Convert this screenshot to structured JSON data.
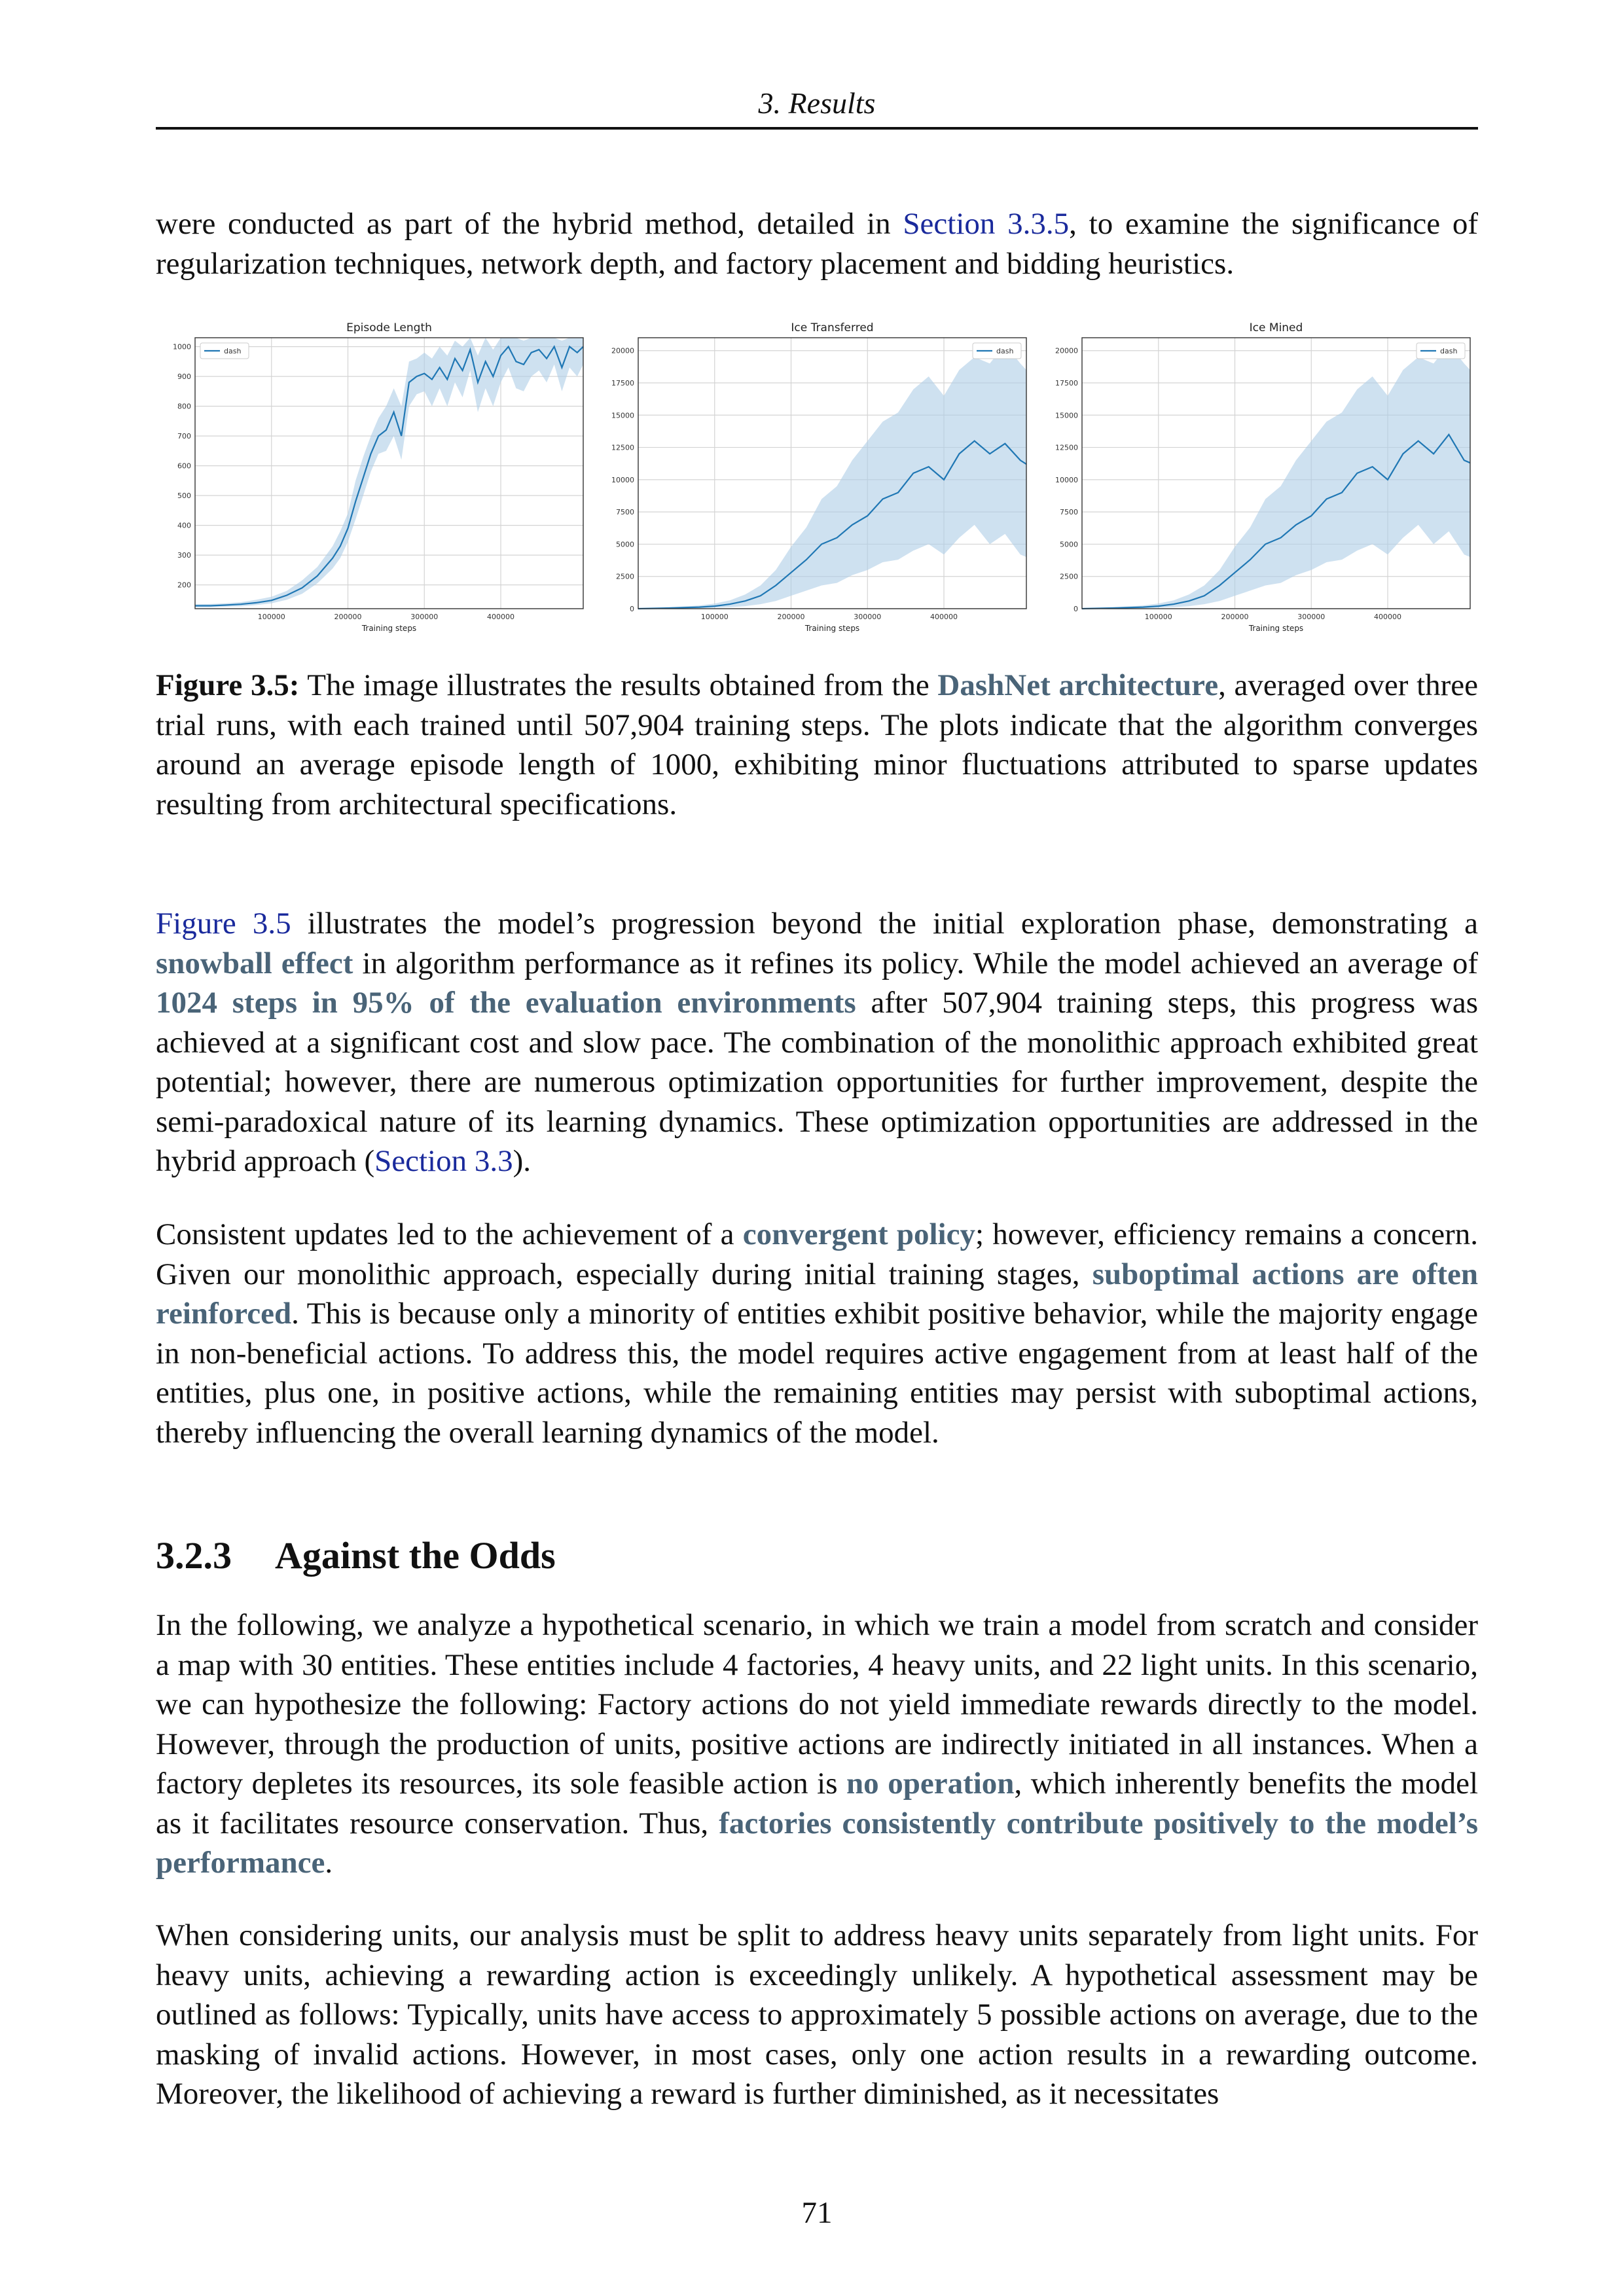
{
  "header": {
    "running_title": "3. Results"
  },
  "intro": {
    "text_before": "were conducted as part of the hybrid method, detailed in ",
    "link": "Section 3.3.5",
    "text_after": ", to examine the significance of regularization techniques, network depth, and factory placement and bidding heuristics."
  },
  "chart_data": [
    {
      "type": "line",
      "title": "Episode Length",
      "xlabel": "Training steps",
      "ylabel": "",
      "xlim": [
        0,
        507904
      ],
      "ylim": [
        120,
        1030
      ],
      "xticks": [
        100000,
        200000,
        300000,
        400000
      ],
      "yticks": [
        200,
        300,
        400,
        500,
        600,
        700,
        800,
        900,
        1000
      ],
      "legend": "top-left",
      "grid": true,
      "series": [
        {
          "name": "dash",
          "color": "#1f77b4",
          "band_color": "#aecde6",
          "x": [
            0,
            20000,
            40000,
            60000,
            80000,
            100000,
            120000,
            140000,
            160000,
            180000,
            190000,
            200000,
            210000,
            220000,
            230000,
            240000,
            250000,
            260000,
            270000,
            280000,
            290000,
            300000,
            310000,
            320000,
            330000,
            340000,
            350000,
            360000,
            370000,
            380000,
            390000,
            400000,
            410000,
            420000,
            430000,
            440000,
            450000,
            460000,
            470000,
            480000,
            490000,
            500000,
            507904
          ],
          "y": [
            130,
            130,
            132,
            135,
            140,
            148,
            165,
            190,
            230,
            290,
            330,
            390,
            480,
            560,
            640,
            700,
            720,
            780,
            700,
            880,
            900,
            910,
            890,
            930,
            890,
            960,
            920,
            990,
            880,
            950,
            900,
            970,
            1000,
            950,
            940,
            980,
            990,
            960,
            1000,
            930,
            1000,
            980,
            1000
          ],
          "y_low": [
            125,
            125,
            127,
            128,
            132,
            138,
            150,
            170,
            205,
            255,
            290,
            345,
            420,
            500,
            580,
            640,
            650,
            700,
            620,
            800,
            840,
            850,
            800,
            860,
            800,
            880,
            830,
            920,
            780,
            860,
            800,
            880,
            930,
            860,
            850,
            900,
            920,
            880,
            940,
            850,
            930,
            900,
            940
          ],
          "y_high": [
            135,
            136,
            138,
            142,
            150,
            160,
            180,
            215,
            260,
            330,
            380,
            440,
            550,
            630,
            700,
            760,
            800,
            860,
            800,
            950,
            960,
            980,
            960,
            1000,
            970,
            1020,
            1000,
            1030,
            970,
            1030,
            990,
            1030,
            1030,
            1030,
            1020,
            1030,
            1030,
            1030,
            1030,
            1020,
            1030,
            1030,
            1030
          ]
        }
      ]
    },
    {
      "type": "line",
      "title": "Ice Transferred",
      "xlabel": "Training steps",
      "ylabel": "",
      "xlim": [
        0,
        507904
      ],
      "ylim": [
        0,
        21000
      ],
      "xticks": [
        100000,
        200000,
        300000,
        400000
      ],
      "yticks": [
        0,
        2500,
        5000,
        7500,
        10000,
        12500,
        15000,
        17500,
        20000
      ],
      "legend": "top-right",
      "grid": true,
      "series": [
        {
          "name": "dash",
          "color": "#1f77b4",
          "band_color": "#aecde6",
          "x": [
            0,
            40000,
            80000,
            100000,
            120000,
            140000,
            160000,
            180000,
            200000,
            220000,
            240000,
            260000,
            280000,
            300000,
            320000,
            340000,
            360000,
            380000,
            400000,
            420000,
            440000,
            460000,
            480000,
            500000,
            507904
          ],
          "y": [
            0,
            50,
            120,
            200,
            350,
            600,
            1000,
            1800,
            2800,
            3800,
            5000,
            5500,
            6500,
            7200,
            8500,
            9000,
            10500,
            11000,
            10000,
            12000,
            13000,
            12000,
            12800,
            11500,
            11200
          ],
          "y_low": [
            0,
            20,
            50,
            80,
            120,
            200,
            350,
            600,
            1000,
            1400,
            1800,
            2000,
            2600,
            3000,
            3600,
            3800,
            4500,
            5000,
            4200,
            5500,
            6500,
            5000,
            5800,
            4200,
            4000
          ],
          "y_high": [
            0,
            100,
            250,
            400,
            650,
            1100,
            1800,
            3000,
            4800,
            6300,
            8500,
            9500,
            11500,
            13000,
            14500,
            15200,
            17000,
            18000,
            16500,
            18500,
            19500,
            19000,
            20500,
            19000,
            18500
          ]
        }
      ]
    },
    {
      "type": "line",
      "title": "Ice Mined",
      "xlabel": "Training steps",
      "ylabel": "",
      "xlim": [
        0,
        507904
      ],
      "ylim": [
        0,
        21000
      ],
      "xticks": [
        100000,
        200000,
        300000,
        400000
      ],
      "yticks": [
        0,
        2500,
        5000,
        7500,
        10000,
        12500,
        15000,
        17500,
        20000
      ],
      "legend": "top-right",
      "grid": true,
      "series": [
        {
          "name": "dash",
          "color": "#1f77b4",
          "band_color": "#aecde6",
          "x": [
            0,
            40000,
            80000,
            100000,
            120000,
            140000,
            160000,
            180000,
            200000,
            220000,
            240000,
            260000,
            280000,
            300000,
            320000,
            340000,
            360000,
            380000,
            400000,
            420000,
            440000,
            460000,
            480000,
            500000,
            507904
          ],
          "y": [
            0,
            50,
            120,
            200,
            350,
            600,
            1000,
            1800,
            2800,
            3800,
            5000,
            5500,
            6500,
            7200,
            8500,
            9000,
            10500,
            11000,
            10000,
            12000,
            13000,
            12000,
            13500,
            11500,
            11300
          ],
          "y_low": [
            0,
            20,
            50,
            80,
            120,
            200,
            350,
            600,
            1000,
            1400,
            1800,
            2000,
            2600,
            3000,
            3600,
            3800,
            4500,
            5000,
            4200,
            5500,
            6500,
            5000,
            6000,
            4200,
            4000
          ],
          "y_high": [
            0,
            100,
            250,
            400,
            650,
            1100,
            1800,
            3000,
            4800,
            6300,
            8500,
            9500,
            11500,
            13000,
            14500,
            15200,
            17000,
            18000,
            16500,
            18500,
            19500,
            19000,
            20500,
            19000,
            18500
          ]
        }
      ]
    }
  ],
  "caption": {
    "label": "Figure 3.5:",
    "text_before": " The image illustrates the results obtained from the ",
    "highlight": "DashNet architecture",
    "text_after": ", averaged over three trial runs, with each trained until 507,904 training steps. The plots indicate that the algorithm converges around an average episode length of 1000, exhibiting minor fluctuations attributed to sparse updates resulting from architectural specifications."
  },
  "para1": {
    "link1": "Figure 3.5",
    "t1": " illustrates the model’s progression beyond the initial exploration phase, demonstrating a ",
    "h1": "snowball effect",
    "t2": " in algorithm performance as it refines its policy. While the model achieved an average of ",
    "h2": "1024 steps in 95% of the evaluation environments",
    "t3": " after 507,904 training steps, this progress was achieved at a significant cost and slow pace. The combination of the monolithic approach exhibited great potential; however, there are numerous optimization opportunities for further improvement, despite the semi-paradoxical nature of its learning dynamics. These optimization opportunities are addressed in the hybrid approach (",
    "link2": "Section 3.3",
    "t4": ")."
  },
  "para2": {
    "t1": "Consistent updates led to the achievement of a ",
    "h1": "convergent policy",
    "t2": "; however, efficiency remains a concern. Given our monolithic approach, especially during initial training stages, ",
    "h2": "suboptimal actions are often reinforced",
    "t3": ". This is because only a minority of entities exhibit positive behavior, while the majority engage in non-beneficial actions. To address this, the model requires active engagement from at least half of the entities, plus one, in positive actions, while the remaining entities may persist with suboptimal actions, thereby influencing the overall learning dynamics of the model."
  },
  "section": {
    "number": "3.2.3",
    "title": "Against the Odds"
  },
  "para3": {
    "t1": "In the following, we analyze a hypothetical scenario, in which we train a model from scratch and consider a map with 30 entities. These entities include 4 factories, 4 heavy units, and 22 light units. In this scenario, we can hypothesize the following: Factory actions do not yield immediate rewards directly to the model. However, through the production of units, positive actions are indirectly initiated in all instances. When a factory depletes its resources, its sole feasible action is ",
    "h1": "no operation",
    "t2": ", which inherently benefits the model as it facilitates resource conservation. Thus, ",
    "h2": "factories consistently contribute positively to the model’s performance",
    "t3": "."
  },
  "para4": {
    "t1": "When considering units, our analysis must be split to address heavy units separately from light units. For heavy units, achieving a rewarding action is exceedingly unlikely. A hypothetical assessment may be outlined as follows: Typically, units have access to approximately 5 possible actions on average, due to the masking of invalid actions. However, in most cases, only one action results in a rewarding outcome. Moreover, the likelihood of achieving a reward is further diminished, as it necessitates"
  },
  "page_number": "71"
}
